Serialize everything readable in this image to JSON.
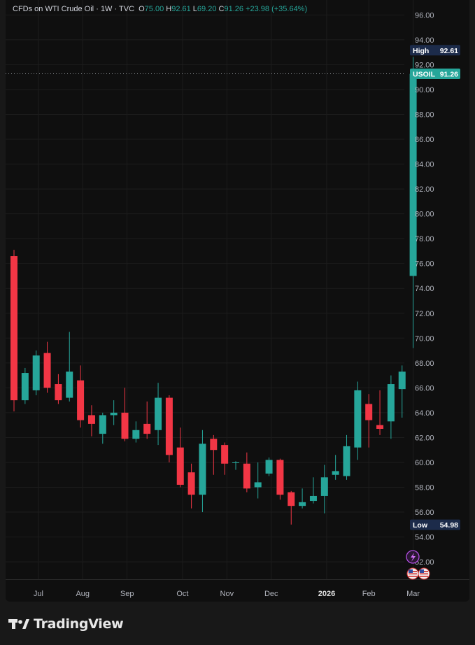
{
  "header": {
    "symbol_desc": "CFDs on WTI Crude Oil",
    "interval": "1W",
    "source": "TVC",
    "open_label": "O",
    "open": "75.00",
    "high_label": "H",
    "high": "92.61",
    "low_label": "L",
    "low": "69.20",
    "close_label": "C",
    "close": "91.26",
    "change": "+23.98 (+35.64%)"
  },
  "badges": {
    "high": {
      "label": "High",
      "value": "92.61"
    },
    "symbol": {
      "label": "USOIL",
      "value": "91.26"
    },
    "low": {
      "label": "Low",
      "value": "54.98"
    }
  },
  "colors": {
    "up": "#26a69a",
    "down": "#f23645",
    "background": "#0f0f0f",
    "grid": "#1d1d1d",
    "axis_text": "#b2b5be",
    "badge_dark": "#1c2b4a"
  },
  "icons": [
    "lightning-event-icon",
    "us-flag-icon",
    "us-flag-icon"
  ],
  "brand": "TradingView",
  "chart_data": {
    "type": "candlestick",
    "ylim": [
      50.6,
      97.2
    ],
    "y_ticks": [
      "52.00",
      "54.00",
      "56.00",
      "58.00",
      "60.00",
      "62.00",
      "64.00",
      "66.00",
      "68.00",
      "70.00",
      "72.00",
      "74.00",
      "76.00",
      "78.00",
      "80.00",
      "82.00",
      "84.00",
      "86.00",
      "88.00",
      "90.00",
      "92.00",
      "94.00",
      "96.00"
    ],
    "x_ticks": [
      {
        "label": "Jul",
        "index": 2.2
      },
      {
        "label": "Aug",
        "index": 6.2
      },
      {
        "label": "Sep",
        "index": 10.2
      },
      {
        "label": "Oct",
        "index": 15.2
      },
      {
        "label": "Nov",
        "index": 19.2
      },
      {
        "label": "Dec",
        "index": 23.2
      },
      {
        "label": "2026",
        "index": 28.2,
        "bold": true
      },
      {
        "label": "Feb",
        "index": 32.0
      },
      {
        "label": "Mar",
        "index": 36.0
      }
    ],
    "candles": [
      {
        "o": 76.6,
        "h": 77.1,
        "l": 64.1,
        "c": 65.0
      },
      {
        "o": 65.0,
        "h": 67.6,
        "l": 64.7,
        "c": 67.2
      },
      {
        "o": 65.8,
        "h": 69.0,
        "l": 65.4,
        "c": 68.6
      },
      {
        "o": 68.8,
        "h": 69.7,
        "l": 65.6,
        "c": 66.0
      },
      {
        "o": 66.3,
        "h": 67.1,
        "l": 64.7,
        "c": 65.0
      },
      {
        "o": 65.2,
        "h": 70.5,
        "l": 64.9,
        "c": 67.3
      },
      {
        "o": 66.6,
        "h": 67.8,
        "l": 62.8,
        "c": 63.4
      },
      {
        "o": 63.8,
        "h": 64.6,
        "l": 62.1,
        "c": 63.1
      },
      {
        "o": 62.3,
        "h": 64.0,
        "l": 61.5,
        "c": 63.8
      },
      {
        "o": 63.8,
        "h": 65.0,
        "l": 63.0,
        "c": 64.0
      },
      {
        "o": 64.0,
        "h": 66.0,
        "l": 61.7,
        "c": 61.9
      },
      {
        "o": 61.9,
        "h": 63.3,
        "l": 61.6,
        "c": 62.6
      },
      {
        "o": 63.1,
        "h": 64.9,
        "l": 61.9,
        "c": 62.3
      },
      {
        "o": 62.6,
        "h": 66.4,
        "l": 61.4,
        "c": 65.2
      },
      {
        "o": 65.2,
        "h": 65.4,
        "l": 60.0,
        "c": 60.6
      },
      {
        "o": 61.2,
        "h": 62.8,
        "l": 58.0,
        "c": 58.2
      },
      {
        "o": 59.2,
        "h": 59.9,
        "l": 56.3,
        "c": 57.4
      },
      {
        "o": 57.4,
        "h": 62.6,
        "l": 56.0,
        "c": 61.5
      },
      {
        "o": 61.9,
        "h": 62.2,
        "l": 59.0,
        "c": 61.0
      },
      {
        "o": 61.4,
        "h": 61.6,
        "l": 59.0,
        "c": 59.9
      },
      {
        "o": 60.0,
        "h": 60.1,
        "l": 59.4,
        "c": 60.0
      },
      {
        "o": 59.9,
        "h": 60.8,
        "l": 57.6,
        "c": 57.9
      },
      {
        "o": 58.0,
        "h": 60.0,
        "l": 57.1,
        "c": 58.4
      },
      {
        "o": 59.1,
        "h": 60.4,
        "l": 58.9,
        "c": 60.2
      },
      {
        "o": 60.2,
        "h": 60.3,
        "l": 57.0,
        "c": 57.4
      },
      {
        "o": 57.6,
        "h": 57.7,
        "l": 55.0,
        "c": 56.5
      },
      {
        "o": 56.5,
        "h": 57.9,
        "l": 56.3,
        "c": 56.8
      },
      {
        "o": 56.9,
        "h": 58.8,
        "l": 56.7,
        "c": 57.3
      },
      {
        "o": 57.3,
        "h": 59.8,
        "l": 55.9,
        "c": 58.8
      },
      {
        "o": 59.0,
        "h": 60.6,
        "l": 58.6,
        "c": 59.3
      },
      {
        "o": 58.9,
        "h": 62.2,
        "l": 58.6,
        "c": 61.3
      },
      {
        "o": 61.2,
        "h": 66.5,
        "l": 60.2,
        "c": 65.8
      },
      {
        "o": 64.7,
        "h": 65.5,
        "l": 61.2,
        "c": 63.4
      },
      {
        "o": 63.0,
        "h": 65.8,
        "l": 62.2,
        "c": 62.7
      },
      {
        "o": 63.3,
        "h": 67.0,
        "l": 61.9,
        "c": 66.3
      },
      {
        "o": 65.9,
        "h": 67.8,
        "l": 63.6,
        "c": 67.3
      },
      {
        "o": 75.0,
        "h": 92.61,
        "l": 69.2,
        "c": 91.26
      }
    ]
  }
}
